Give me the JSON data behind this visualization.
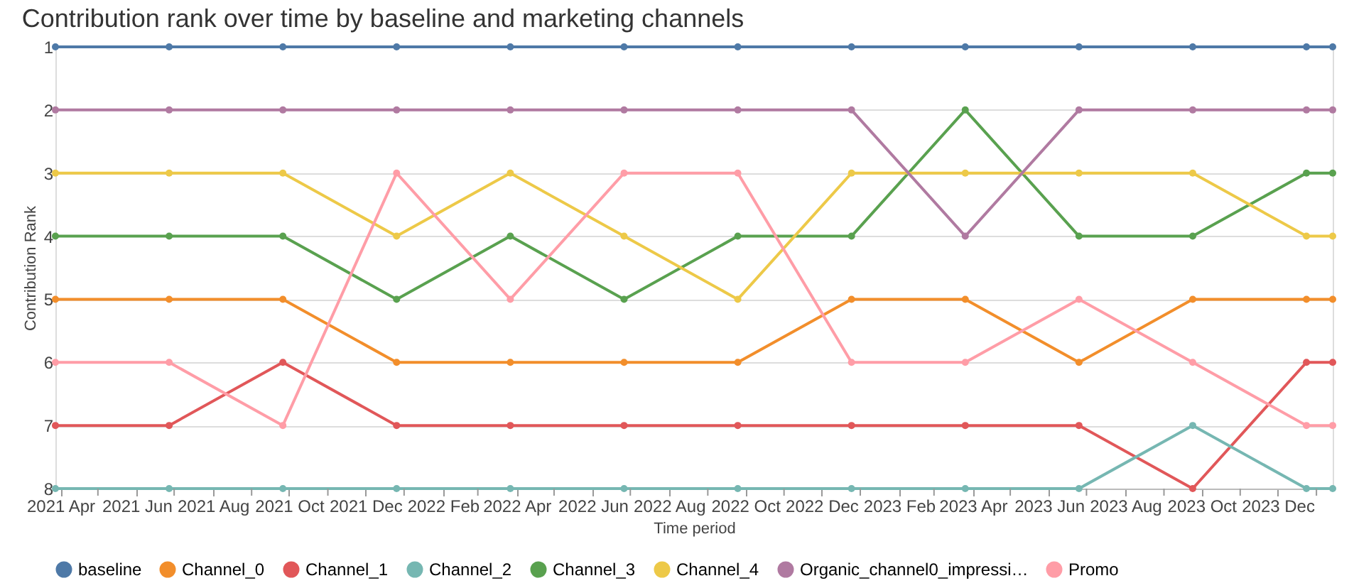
{
  "chart_data": {
    "type": "line",
    "title": "Contribution rank over time by baseline and marketing channels",
    "xlabel": "Time period",
    "ylabel": "Contribution Rank",
    "x": [
      "2021-03-28",
      "2021-06-27",
      "2021-09-26",
      "2021-12-26",
      "2022-03-27",
      "2022-06-26",
      "2022-09-25",
      "2022-12-25",
      "2023-03-26",
      "2023-06-25",
      "2023-09-24",
      "2023-12-24",
      "2024-01-14"
    ],
    "xlim": [
      "2021-03-28",
      "2024-01-14"
    ],
    "xticks": [
      {
        "value": "2021-04",
        "label": "2021 Apr"
      },
      {
        "value": "2021-05",
        "label": null
      },
      {
        "value": "2021-06",
        "label": "2021 Jun"
      },
      {
        "value": "2021-07",
        "label": null
      },
      {
        "value": "2021-08",
        "label": "2021 Aug"
      },
      {
        "value": "2021-09",
        "label": null
      },
      {
        "value": "2021-10",
        "label": "2021 Oct"
      },
      {
        "value": "2021-11",
        "label": null
      },
      {
        "value": "2021-12",
        "label": "2021 Dec"
      },
      {
        "value": "2022-01",
        "label": null
      },
      {
        "value": "2022-02",
        "label": "2022 Feb"
      },
      {
        "value": "2022-03",
        "label": null
      },
      {
        "value": "2022-04",
        "label": "2022 Apr"
      },
      {
        "value": "2022-05",
        "label": null
      },
      {
        "value": "2022-06",
        "label": "2022 Jun"
      },
      {
        "value": "2022-07",
        "label": null
      },
      {
        "value": "2022-08",
        "label": "2022 Aug"
      },
      {
        "value": "2022-09",
        "label": null
      },
      {
        "value": "2022-10",
        "label": "2022 Oct"
      },
      {
        "value": "2022-11",
        "label": null
      },
      {
        "value": "2022-12",
        "label": "2022 Dec"
      },
      {
        "value": "2023-01",
        "label": null
      },
      {
        "value": "2023-02",
        "label": "2023 Feb"
      },
      {
        "value": "2023-03",
        "label": null
      },
      {
        "value": "2023-04",
        "label": "2023 Apr"
      },
      {
        "value": "2023-05",
        "label": null
      },
      {
        "value": "2023-06",
        "label": "2023 Jun"
      },
      {
        "value": "2023-07",
        "label": null
      },
      {
        "value": "2023-08",
        "label": "2023 Aug"
      },
      {
        "value": "2023-09",
        "label": null
      },
      {
        "value": "2023-10",
        "label": "2023 Oct"
      },
      {
        "value": "2023-11",
        "label": null
      },
      {
        "value": "2023-12",
        "label": "2023 Dec"
      },
      {
        "value": "2024-01",
        "label": null
      }
    ],
    "ylim": [
      8,
      1
    ],
    "yticks": [
      1,
      2,
      3,
      4,
      5,
      6,
      7,
      8
    ],
    "grid": "y",
    "legend": "bottom",
    "marker": "circle",
    "line_style": "solid",
    "series": [
      {
        "name": "baseline",
        "color": "#4e79a7",
        "values": [
          1,
          1,
          1,
          1,
          1,
          1,
          1,
          1,
          1,
          1,
          1,
          1,
          1
        ]
      },
      {
        "name": "Channel_0",
        "color": "#f28e2b",
        "values": [
          5,
          5,
          5,
          6,
          6,
          6,
          6,
          5,
          5,
          6,
          5,
          5,
          5
        ]
      },
      {
        "name": "Channel_1",
        "color": "#e15759",
        "values": [
          7,
          7,
          6,
          7,
          7,
          7,
          7,
          7,
          7,
          7,
          8,
          6,
          6
        ]
      },
      {
        "name": "Channel_2",
        "color": "#76b7b2",
        "values": [
          8,
          8,
          8,
          8,
          8,
          8,
          8,
          8,
          8,
          8,
          7,
          8,
          8
        ]
      },
      {
        "name": "Channel_3",
        "color": "#59a14f",
        "values": [
          4,
          4,
          4,
          5,
          4,
          5,
          4,
          4,
          2,
          4,
          4,
          3,
          3
        ]
      },
      {
        "name": "Channel_4",
        "color": "#edc948",
        "values": [
          3,
          3,
          3,
          4,
          3,
          4,
          5,
          3,
          3,
          3,
          3,
          4,
          4
        ]
      },
      {
        "name": "Organic_channel0_impressi…",
        "color": "#b07aa1",
        "values": [
          2,
          2,
          2,
          2,
          2,
          2,
          2,
          2,
          4,
          2,
          2,
          2,
          2
        ]
      },
      {
        "name": "Promo",
        "color": "#ff9da7",
        "values": [
          6,
          6,
          7,
          3,
          5,
          3,
          3,
          6,
          6,
          5,
          6,
          7,
          7
        ]
      }
    ]
  }
}
